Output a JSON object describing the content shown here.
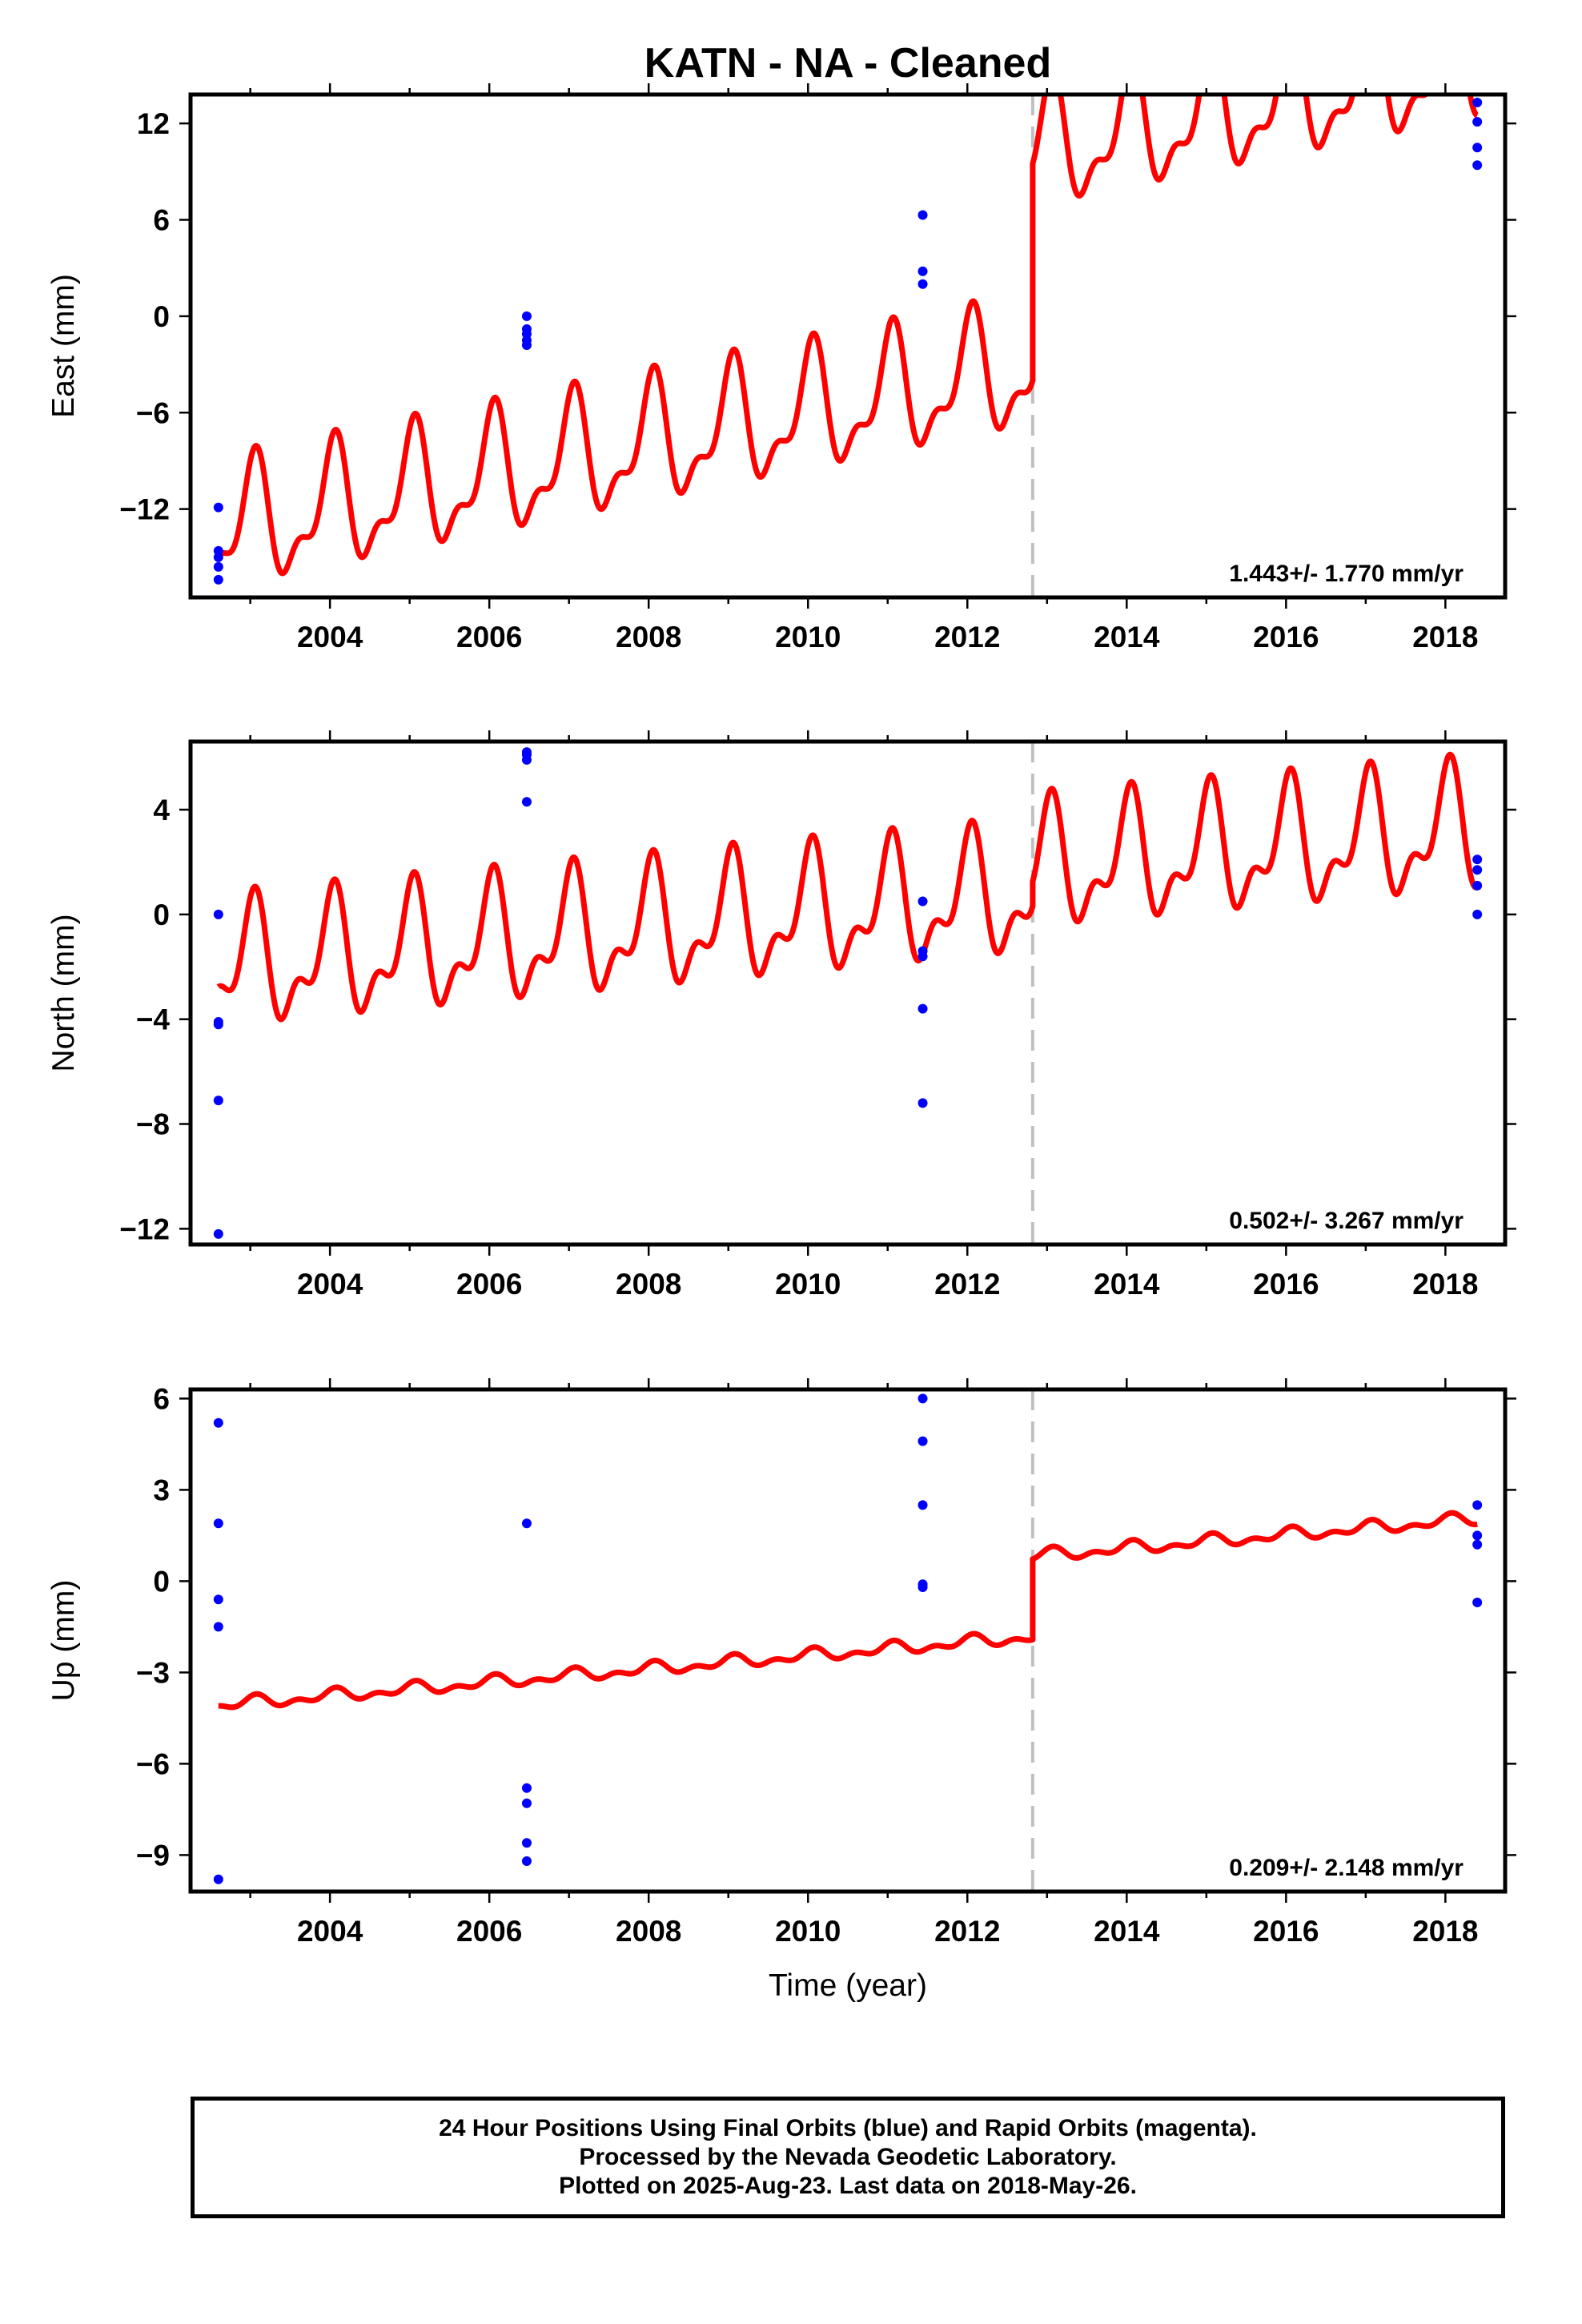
{
  "title": "KATN  - NA - Cleaned",
  "colors": {
    "model": "#ff0000",
    "final_orbits": "#0000ff",
    "offset_line": "#c0c0c0",
    "axis": "#000000"
  },
  "footer": {
    "line1": "24 Hour Positions Using Final Orbits (blue) and Rapid Orbits (magenta).",
    "line2": "Processed by the Nevada Geodetic Laboratory.",
    "line3": "Plotted on 2025-Aug-23. Last data on 2018-May-26."
  },
  "chart_data": [
    {
      "type": "scatter",
      "component": "east",
      "ylabel": "East (mm)",
      "xlabel": "",
      "xlim": [
        2002.25,
        2018.75
      ],
      "ylim": [
        -17.5,
        13.8
      ],
      "xticks": [
        2004,
        2006,
        2008,
        2010,
        2012,
        2014,
        2016,
        2018
      ],
      "xtick_labels": [
        "2004",
        "2006",
        "2008",
        "2010",
        "2012",
        "2014",
        "2016",
        "2018"
      ],
      "yticks": [
        -12,
        -6,
        0,
        6,
        12
      ],
      "ytick_labels": [
        "−12",
        "−6",
        "0",
        "6",
        "12"
      ],
      "rate_label": "1.443+/- 1.770 mm/yr",
      "offset_epoch": 2012.82,
      "points": [
        {
          "x": 2002.6,
          "y": -11.9
        },
        {
          "x": 2002.6,
          "y": -14.6
        },
        {
          "x": 2002.6,
          "y": -15.0
        },
        {
          "x": 2002.6,
          "y": -15.6
        },
        {
          "x": 2002.6,
          "y": -16.4
        },
        {
          "x": 2006.47,
          "y": 0.0
        },
        {
          "x": 2006.47,
          "y": -0.8
        },
        {
          "x": 2006.47,
          "y": -1.1
        },
        {
          "x": 2006.47,
          "y": -1.5
        },
        {
          "x": 2006.47,
          "y": -1.8
        },
        {
          "x": 2011.44,
          "y": 6.3
        },
        {
          "x": 2011.44,
          "y": 2.8
        },
        {
          "x": 2011.44,
          "y": 2.0
        },
        {
          "x": 2018.4,
          "y": 13.3
        },
        {
          "x": 2018.4,
          "y": 12.1
        },
        {
          "x": 2018.4,
          "y": 10.5
        },
        {
          "x": 2018.4,
          "y": 9.4
        }
      ],
      "model": [
        {
          "segment": 1,
          "x_start": 2002.6,
          "x_end": 2012.82,
          "intercept": -6.0,
          "rate": 1.0,
          "a1": 3.4,
          "phase1": 1.35,
          "a2": 1.6,
          "phase2": 0.45
        },
        {
          "segment": 2,
          "x_start": 2012.82,
          "x_end": 2018.4,
          "intercept": 7.5,
          "rate": 1.0,
          "a1": 3.4,
          "phase1": 1.35,
          "a2": 1.6,
          "phase2": 0.45
        }
      ]
    },
    {
      "type": "scatter",
      "component": "north",
      "ylabel": "North (mm)",
      "xlabel": "",
      "xlim": [
        2002.25,
        2018.75
      ],
      "ylim": [
        -12.6,
        6.6
      ],
      "xticks": [
        2004,
        2006,
        2008,
        2010,
        2012,
        2014,
        2016,
        2018
      ],
      "xtick_labels": [
        "2004",
        "2006",
        "2008",
        "2010",
        "2012",
        "2014",
        "2016",
        "2018"
      ],
      "yticks": [
        -12,
        -8,
        -4,
        0,
        4
      ],
      "ytick_labels": [
        "−12",
        "−8",
        "−4",
        "0",
        "4"
      ],
      "rate_label": "0.502+/- 3.267 mm/yr",
      "offset_epoch": 2012.82,
      "points": [
        {
          "x": 2002.6,
          "y": 0.0
        },
        {
          "x": 2002.6,
          "y": -4.1
        },
        {
          "x": 2002.6,
          "y": -4.2
        },
        {
          "x": 2002.6,
          "y": -7.1
        },
        {
          "x": 2002.6,
          "y": -12.2
        },
        {
          "x": 2006.47,
          "y": 6.1
        },
        {
          "x": 2006.47,
          "y": 5.9
        },
        {
          "x": 2006.47,
          "y": 6.2
        },
        {
          "x": 2006.47,
          "y": 4.3
        },
        {
          "x": 2011.44,
          "y": 0.5
        },
        {
          "x": 2011.44,
          "y": -1.4
        },
        {
          "x": 2011.44,
          "y": -1.6
        },
        {
          "x": 2011.44,
          "y": -3.6
        },
        {
          "x": 2011.44,
          "y": -7.2
        },
        {
          "x": 2018.4,
          "y": 2.1
        },
        {
          "x": 2018.4,
          "y": 1.7
        },
        {
          "x": 2018.4,
          "y": 1.1
        },
        {
          "x": 2018.4,
          "y": 0.0
        }
      ],
      "model": [
        {
          "segment": 1,
          "x_start": 2002.6,
          "x_end": 2012.82,
          "intercept": 0.0,
          "rate": 0.28,
          "a1": 2.0,
          "phase1": 1.45,
          "a2": 1.1,
          "phase2": 0.6
        },
        {
          "segment": 2,
          "x_start": 2012.82,
          "x_end": 2018.4,
          "intercept": 1.0,
          "rate": 0.26,
          "a1": 2.0,
          "phase1": 1.45,
          "a2": 1.1,
          "phase2": 0.6
        }
      ]
    },
    {
      "type": "scatter",
      "component": "up",
      "ylabel": "Up (mm)",
      "xlabel": "Time (year)",
      "xlim": [
        2002.25,
        2018.75
      ],
      "ylim": [
        -10.2,
        6.3
      ],
      "xticks": [
        2004,
        2006,
        2008,
        2010,
        2012,
        2014,
        2016,
        2018
      ],
      "xtick_labels": [
        "2004",
        "2006",
        "2008",
        "2010",
        "2012",
        "2014",
        "2016",
        "2018"
      ],
      "yticks": [
        -9,
        -6,
        -3,
        0,
        3,
        6
      ],
      "ytick_labels": [
        "−9",
        "−6",
        "−3",
        "0",
        "3",
        "6"
      ],
      "rate_label": "0.209+/- 2.148 mm/yr",
      "offset_epoch": 2012.82,
      "points": [
        {
          "x": 2002.6,
          "y": 5.2
        },
        {
          "x": 2002.6,
          "y": 1.9
        },
        {
          "x": 2002.6,
          "y": -0.6
        },
        {
          "x": 2002.6,
          "y": -1.5
        },
        {
          "x": 2002.6,
          "y": -9.8
        },
        {
          "x": 2006.47,
          "y": 1.9
        },
        {
          "x": 2006.47,
          "y": -6.8
        },
        {
          "x": 2006.47,
          "y": -7.3
        },
        {
          "x": 2006.47,
          "y": -8.6
        },
        {
          "x": 2006.47,
          "y": -9.2
        },
        {
          "x": 2011.44,
          "y": 6.0
        },
        {
          "x": 2011.44,
          "y": 4.6
        },
        {
          "x": 2011.44,
          "y": 2.5
        },
        {
          "x": 2011.44,
          "y": -0.1
        },
        {
          "x": 2011.44,
          "y": -0.2
        },
        {
          "x": 2018.4,
          "y": 2.5
        },
        {
          "x": 2018.4,
          "y": 1.5
        },
        {
          "x": 2018.4,
          "y": 1.2
        },
        {
          "x": 2018.4,
          "y": -0.7
        }
      ],
      "model": [
        {
          "segment": 1,
          "x_start": 2002.6,
          "x_end": 2012.82,
          "intercept": -2.45,
          "rate": 0.22,
          "a1": 0.15,
          "phase1": 1.3,
          "a2": 0.12,
          "phase2": 0.5
        },
        {
          "segment": 2,
          "x_start": 2012.82,
          "x_end": 2018.4,
          "intercept": 0.2,
          "rate": 0.22,
          "a1": 0.15,
          "phase1": 1.3,
          "a2": 0.12,
          "phase2": 0.5
        }
      ]
    }
  ]
}
